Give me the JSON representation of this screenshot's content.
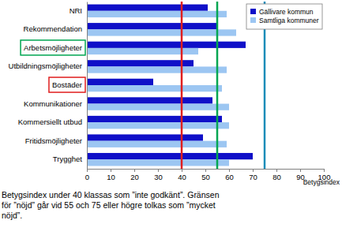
{
  "chart_data": {
    "type": "bar",
    "orientation": "horizontal",
    "categories": [
      "NRI",
      "Rekommendation",
      "Arbetsmöjligheter",
      "Utbildningsmöjligheter",
      "Bostäder",
      "Kommunikationer",
      "Kommersiellt utbud",
      "Fritidsmöjligheter",
      "Trygghet"
    ],
    "series": [
      {
        "name": "Gällivare kommun",
        "color": "#1010c8",
        "values": [
          51,
          55,
          67,
          45,
          28,
          53,
          57,
          49,
          70
        ]
      },
      {
        "name": "Samtliga kommuner",
        "color": "#9cc6f2",
        "values": [
          59,
          63,
          47,
          59,
          57,
          60,
          60,
          59,
          60
        ]
      }
    ],
    "xlabel": "Betygsindex",
    "xlim": [
      0,
      100
    ],
    "xticks": [
      0,
      10,
      20,
      30,
      40,
      50,
      60,
      70,
      80,
      90,
      100
    ],
    "grid": false,
    "legend": "upper right",
    "reference_lines": [
      {
        "value": 40,
        "color": "#e01e1e"
      },
      {
        "value": 55,
        "color": "#00a651"
      },
      {
        "value": 75,
        "color": "#1a8cb8"
      }
    ],
    "highlights": [
      {
        "category": "Arbetsmöjligheter",
        "color": "#00a651"
      },
      {
        "category": "Bostäder",
        "color": "#e01e1e"
      }
    ],
    "annotations": [
      "Betygsindex under 40 klassas som ”inte godkänt”. Gränsen",
      "för ”nöjd” går vid 55 och 75 eller högre tolkas som ”mycket",
      "nöjd”."
    ]
  }
}
